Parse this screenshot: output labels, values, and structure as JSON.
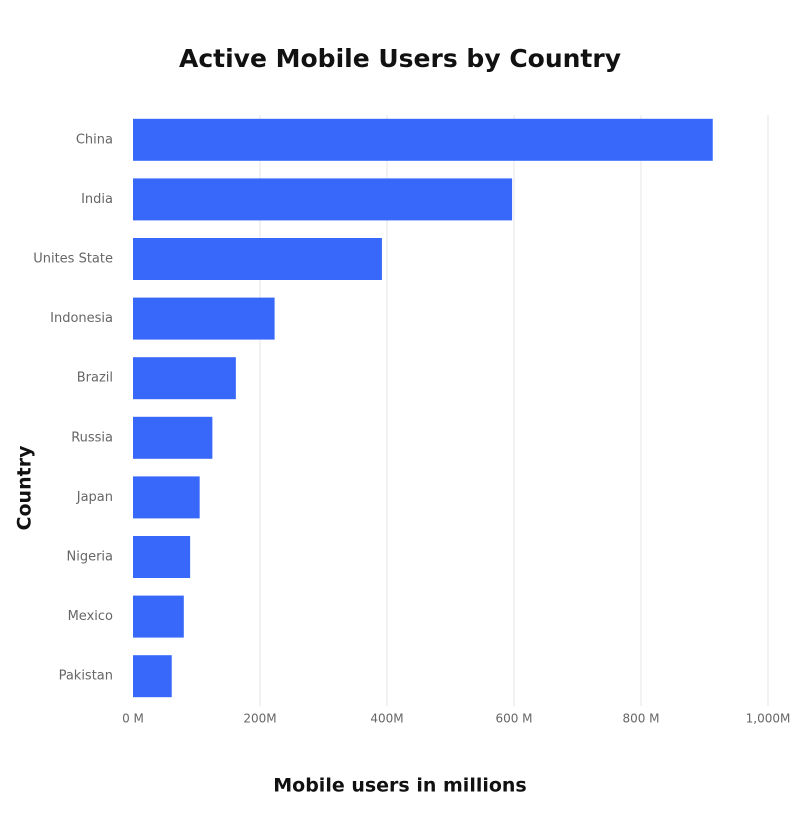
{
  "chart_data": {
    "type": "bar",
    "orientation": "horizontal",
    "title": "Active Mobile Users by Country",
    "x_label": "Mobile users in millions",
    "y_label": "Country",
    "categories": [
      "China",
      "India",
      "Unites State",
      "Indonesia",
      "Brazil",
      "Russia",
      "Japan",
      "Nigeria",
      "Mexico",
      "Pakistan"
    ],
    "values": [
      913,
      597,
      392,
      223,
      162,
      125,
      105,
      90,
      80,
      61
    ],
    "color": "#3868fa",
    "xlim": [
      0,
      1000
    ],
    "xticks": [
      {
        "value": 0,
        "label": "0 M"
      },
      {
        "value": 200,
        "label": "200M"
      },
      {
        "value": 400,
        "label": "400M"
      },
      {
        "value": 600,
        "label": "600 M"
      },
      {
        "value": 800,
        "label": "800 M"
      },
      {
        "value": 1000,
        "label": "1,000M"
      }
    ],
    "grid": true
  }
}
